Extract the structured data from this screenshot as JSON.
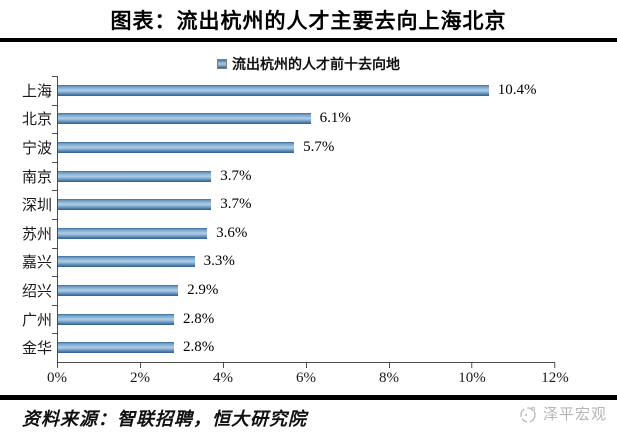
{
  "title": "图表：流出杭州的人才主要去向上海北京",
  "chart_data": {
    "type": "bar",
    "orientation": "horizontal",
    "title": "流出杭州的人才前十去向地",
    "legend": "流出杭州的人才前十去向地",
    "categories": [
      "上海",
      "北京",
      "宁波",
      "南京",
      "深圳",
      "苏州",
      "嘉兴",
      "绍兴",
      "广州",
      "金华"
    ],
    "values": [
      10.4,
      6.1,
      5.7,
      3.7,
      3.7,
      3.6,
      3.3,
      2.9,
      2.8,
      2.8
    ],
    "value_labels": [
      "10.4%",
      "6.1%",
      "5.7%",
      "3.7%",
      "3.7%",
      "3.6%",
      "3.3%",
      "2.9%",
      "2.8%",
      "2.8%"
    ],
    "xlim": [
      0,
      12
    ],
    "x_ticks": [
      "0%",
      "2%",
      "4%",
      "6%",
      "8%",
      "10%",
      "12%"
    ],
    "bar_color": "#6d9ac6",
    "grid": false,
    "legend_position": "top-center"
  },
  "footer": {
    "source": "资料来源：智联招聘，恒大研究院",
    "brand": "泽平宏观"
  },
  "colors": {
    "bar_light": "#aecde6",
    "bar_dark": "#2f5f93",
    "axis": "#4d4d4d",
    "brand_gray": "#b3b6b8",
    "rule": "#000000"
  }
}
